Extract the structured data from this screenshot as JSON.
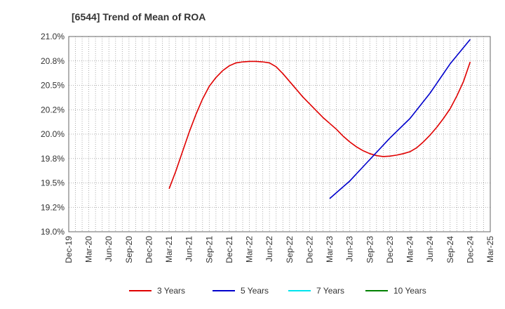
{
  "chart_data": {
    "type": "line",
    "title": "[6544]  Trend of Mean of ROA",
    "xlabel": "",
    "ylabel": "",
    "x_ticks": [
      "Dec-19",
      "Mar-20",
      "Jun-20",
      "Sep-20",
      "Dec-20",
      "Mar-21",
      "Jun-21",
      "Sep-21",
      "Dec-21",
      "Mar-22",
      "Jun-22",
      "Sep-22",
      "Dec-22",
      "Mar-23",
      "Jun-23",
      "Sep-23",
      "Dec-23",
      "Mar-24",
      "Jun-24",
      "Sep-24",
      "Dec-24",
      "Mar-25"
    ],
    "y_ticks": [
      "21.0%",
      "20.8%",
      "20.5%",
      "20.2%",
      "20.0%",
      "19.8%",
      "19.5%",
      "19.2%",
      "19.0%"
    ],
    "ylim": [
      19.0,
      21.0
    ],
    "grid": true,
    "legend_position": "bottom",
    "series": [
      {
        "name": "3 Years",
        "color": "#e00000",
        "points": [
          [
            "Mar-21",
            19.44
          ],
          [
            "Apr-21",
            19.62
          ],
          [
            "May-21",
            19.82
          ],
          [
            "Jun-21",
            20.02
          ],
          [
            "Jul-21",
            20.2
          ],
          [
            "Aug-21",
            20.36
          ],
          [
            "Sep-21",
            20.49
          ],
          [
            "Oct-21",
            20.58
          ],
          [
            "Nov-21",
            20.65
          ],
          [
            "Dec-21",
            20.7
          ],
          [
            "Jan-22",
            20.73
          ],
          [
            "Feb-22",
            20.74
          ],
          [
            "Mar-22",
            20.745
          ],
          [
            "Apr-22",
            20.745
          ],
          [
            "May-22",
            20.74
          ],
          [
            "Jun-22",
            20.73
          ],
          [
            "Jul-22",
            20.69
          ],
          [
            "Aug-22",
            20.62
          ],
          [
            "Sep-22",
            20.54
          ],
          [
            "Oct-22",
            20.46
          ],
          [
            "Nov-22",
            20.38
          ],
          [
            "Dec-22",
            20.31
          ],
          [
            "Jan-23",
            20.24
          ],
          [
            "Feb-23",
            20.17
          ],
          [
            "Mar-23",
            20.11
          ],
          [
            "Apr-23",
            20.05
          ],
          [
            "May-23",
            19.98
          ],
          [
            "Jun-23",
            19.92
          ],
          [
            "Jul-23",
            19.87
          ],
          [
            "Aug-23",
            19.83
          ],
          [
            "Sep-23",
            19.8
          ],
          [
            "Oct-23",
            19.78
          ],
          [
            "Nov-23",
            19.77
          ],
          [
            "Dec-23",
            19.775
          ],
          [
            "Jan-24",
            19.785
          ],
          [
            "Feb-24",
            19.8
          ],
          [
            "Mar-24",
            19.82
          ],
          [
            "Apr-24",
            19.86
          ],
          [
            "May-24",
            19.92
          ],
          [
            "Jun-24",
            19.99
          ],
          [
            "Jul-24",
            20.07
          ],
          [
            "Aug-24",
            20.16
          ],
          [
            "Sep-24",
            20.26
          ],
          [
            "Oct-24",
            20.39
          ],
          [
            "Nov-24",
            20.54
          ],
          [
            "Dec-24",
            20.74
          ]
        ]
      },
      {
        "name": "5 Years",
        "color": "#0000cc",
        "points": [
          [
            "Mar-23",
            19.34
          ],
          [
            "Jun-23",
            19.52
          ],
          [
            "Sep-23",
            19.74
          ],
          [
            "Dec-23",
            19.96
          ],
          [
            "Mar-24",
            20.16
          ],
          [
            "Jun-24",
            20.42
          ],
          [
            "Sep-24",
            20.72
          ],
          [
            "Dec-24",
            20.97
          ]
        ]
      },
      {
        "name": "7 Years",
        "color": "#00e5ee",
        "points": []
      },
      {
        "name": "10 Years",
        "color": "#008000",
        "points": []
      }
    ]
  }
}
